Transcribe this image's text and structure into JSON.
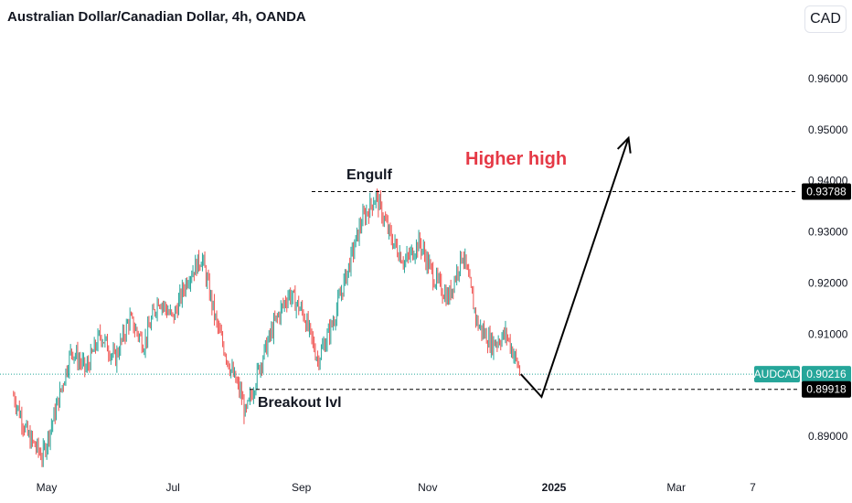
{
  "header": {
    "title": "Australian Dollar/Canadian Dollar, 4h, OANDA",
    "currency_label": "CAD"
  },
  "colors": {
    "up": "#26a69a",
    "down": "#ef5350",
    "headline": "#e53946",
    "text": "#131722",
    "price_line": "#26a69a"
  },
  "chart_data": {
    "type": "candlestick",
    "title": "Australian Dollar/Canadian Dollar, 4h, OANDA",
    "symbol": "AUDCAD",
    "y_axis": {
      "ticks": [
        "0.96000",
        "0.95000",
        "0.94000",
        "0.93000",
        "0.92000",
        "0.91000",
        "0.89000"
      ],
      "range": [
        0.8835,
        0.9725
      ]
    },
    "x_axis": {
      "ticks": [
        {
          "label": "May",
          "bold": false
        },
        {
          "label": "Jul",
          "bold": false
        },
        {
          "label": "Sep",
          "bold": false
        },
        {
          "label": "Nov",
          "bold": false
        },
        {
          "label": "2025",
          "bold": true
        },
        {
          "label": "Mar",
          "bold": false
        },
        {
          "label": "7",
          "bold": false
        }
      ]
    },
    "price_path": [
      [
        "2024-04-15",
        0.898
      ],
      [
        "2024-04-22",
        0.89
      ],
      [
        "2024-04-29",
        0.886
      ],
      [
        "2024-05-06",
        0.896
      ],
      [
        "2024-05-13",
        0.907
      ],
      [
        "2024-05-20",
        0.903
      ],
      [
        "2024-05-27",
        0.91
      ],
      [
        "2024-06-03",
        0.905
      ],
      [
        "2024-06-10",
        0.913
      ],
      [
        "2024-06-17",
        0.908
      ],
      [
        "2024-06-24",
        0.917
      ],
      [
        "2024-07-01",
        0.913
      ],
      [
        "2024-07-08",
        0.921
      ],
      [
        "2024-07-15",
        0.925
      ],
      [
        "2024-07-22",
        0.912
      ],
      [
        "2024-07-29",
        0.903
      ],
      [
        "2024-08-03",
        0.898
      ],
      [
        "2024-08-05",
        0.894
      ],
      [
        "2024-08-12",
        0.904
      ],
      [
        "2024-08-19",
        0.912
      ],
      [
        "2024-08-26",
        0.918
      ],
      [
        "2024-09-02",
        0.914
      ],
      [
        "2024-09-09",
        0.905
      ],
      [
        "2024-09-16",
        0.912
      ],
      [
        "2024-09-23",
        0.922
      ],
      [
        "2024-09-30",
        0.932
      ],
      [
        "2024-10-07",
        0.937
      ],
      [
        "2024-10-14",
        0.929
      ],
      [
        "2024-10-21",
        0.924
      ],
      [
        "2024-10-28",
        0.928
      ],
      [
        "2024-11-04",
        0.921
      ],
      [
        "2024-11-11",
        0.917
      ],
      [
        "2024-11-18",
        0.926
      ],
      [
        "2024-11-25",
        0.912
      ],
      [
        "2024-12-02",
        0.908
      ],
      [
        "2024-12-09",
        0.91
      ],
      [
        "2024-12-16",
        0.9022
      ]
    ],
    "current_price": {
      "symbol": "AUDCAD",
      "label": "0.90216",
      "value": 0.90216
    },
    "levels": [
      {
        "name": "Engulf",
        "label": "0.93788",
        "value": 0.93788
      },
      {
        "name": "Breakout lvl",
        "label": "0.89918",
        "value": 0.89918
      }
    ],
    "annotations": {
      "engulf": "Engulf",
      "breakout": "Breakout lvl",
      "higher_high": "Higher high"
    },
    "projection": [
      [
        "2024-12-16",
        0.90216
      ],
      [
        "2024-12-26",
        0.8977
      ],
      [
        "2025-02-06",
        0.9484
      ]
    ]
  }
}
